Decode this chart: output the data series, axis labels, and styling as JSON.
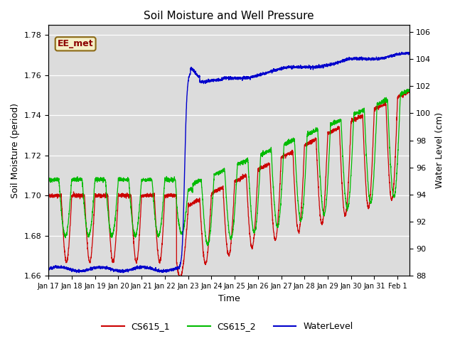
{
  "title": "Soil Moisture and Well Pressure",
  "ylabel_left": "Soil Moisture (period)",
  "ylabel_right": "Water Level (cm)",
  "xlabel": "Time",
  "ylim_left": [
    1.66,
    1.785
  ],
  "ylim_right": [
    88,
    106.5
  ],
  "bg_color": "#dcdcdc",
  "fig_color": "#ffffff",
  "annotation_text": "EE_met",
  "annotation_bg": "#f5f0c8",
  "annotation_border": "#8b6914",
  "annotation_text_color": "#8b0000",
  "cs1_color": "#cc0000",
  "cs2_color": "#00bb00",
  "wl_color": "#0000cc",
  "legend_cs1": "CS615_1",
  "legend_cs2": "CS615_2",
  "legend_wl": "WaterLevel",
  "xtick_labels": [
    "Jan 17",
    "Jan 18",
    "Jan 19",
    "Jan 20",
    "Jan 21",
    "Jan 22",
    "Jan 23",
    "Jan 24",
    "Jan 25",
    "Jan 26",
    "Jan 27",
    "Jan 28",
    "Jan 29",
    "Jan 30",
    "Jan 31",
    "Feb 1"
  ],
  "yticks_left": [
    1.66,
    1.68,
    1.7,
    1.72,
    1.74,
    1.76,
    1.78
  ],
  "yticks_right": [
    88,
    90,
    92,
    94,
    96,
    98,
    100,
    102,
    104,
    106
  ]
}
